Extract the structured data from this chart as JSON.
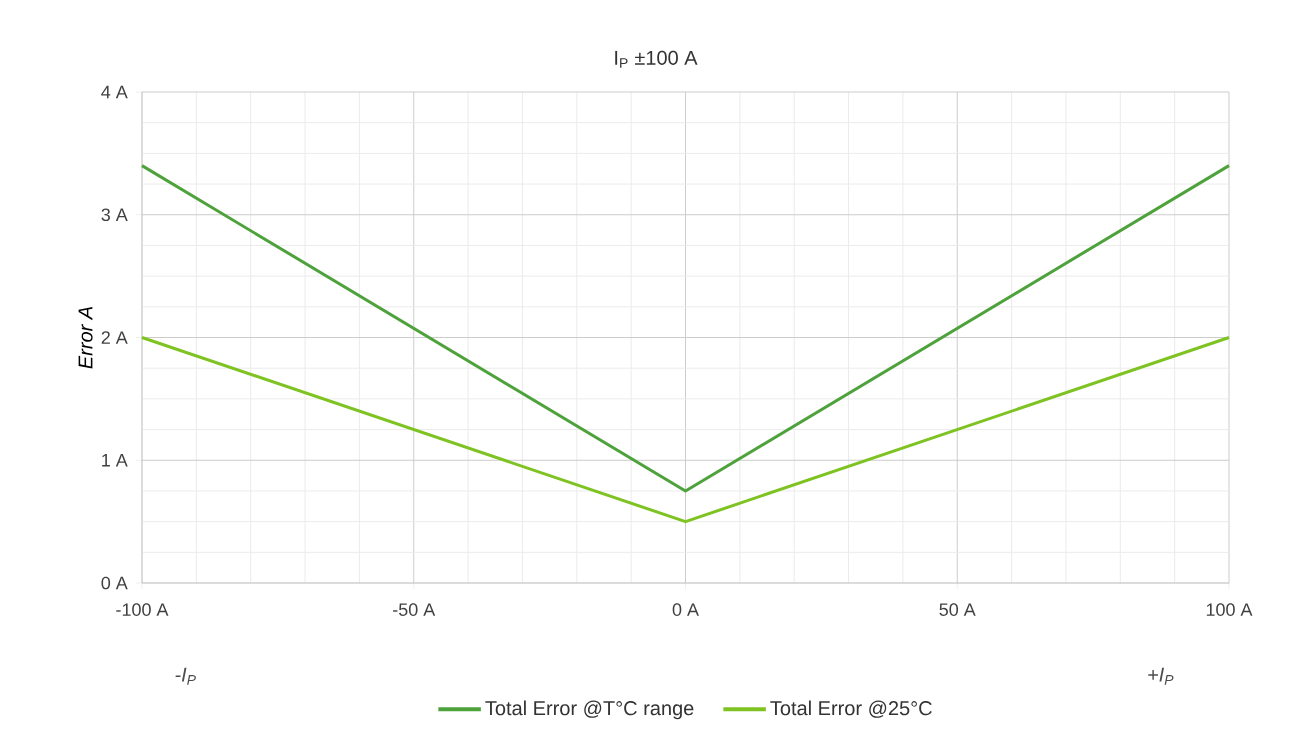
{
  "chart_data": {
    "type": "line",
    "title": "I$_{P}$  ±100 A",
    "ylabel": "Error  A",
    "x": [
      -100,
      0,
      100
    ],
    "series": [
      {
        "name": "Total Error @T°C range",
        "color": "#4ea23c",
        "values": [
          3.4,
          0.75,
          3.4
        ]
      },
      {
        "name": "Total Error @25°C",
        "color": "#7ec321",
        "values": [
          2,
          0.5,
          2
        ]
      }
    ],
    "xlim": [
      -100,
      100
    ],
    "xticks": [
      {
        "value": -100,
        "label": "-100 A"
      },
      {
        "value": -50,
        "label": "-50 A"
      },
      {
        "value": 0,
        "label": "0 A"
      },
      {
        "value": 50,
        "label": "50 A"
      },
      {
        "value": 100,
        "label": "100 A"
      }
    ],
    "ylim": [
      0,
      4
    ],
    "yticks": [
      {
        "value": 0,
        "label": "0 A"
      },
      {
        "value": 1,
        "label": "1 A"
      },
      {
        "value": 2,
        "label": "2 A"
      },
      {
        "value": 3,
        "label": "3 A"
      },
      {
        "value": 4,
        "label": "4 A"
      }
    ],
    "annotations": [
      "-I$_{P}$",
      "+I$_{P}$"
    ],
    "grid": true,
    "legend": "bottom",
    "marker": "none",
    "line_style": "solid"
  }
}
